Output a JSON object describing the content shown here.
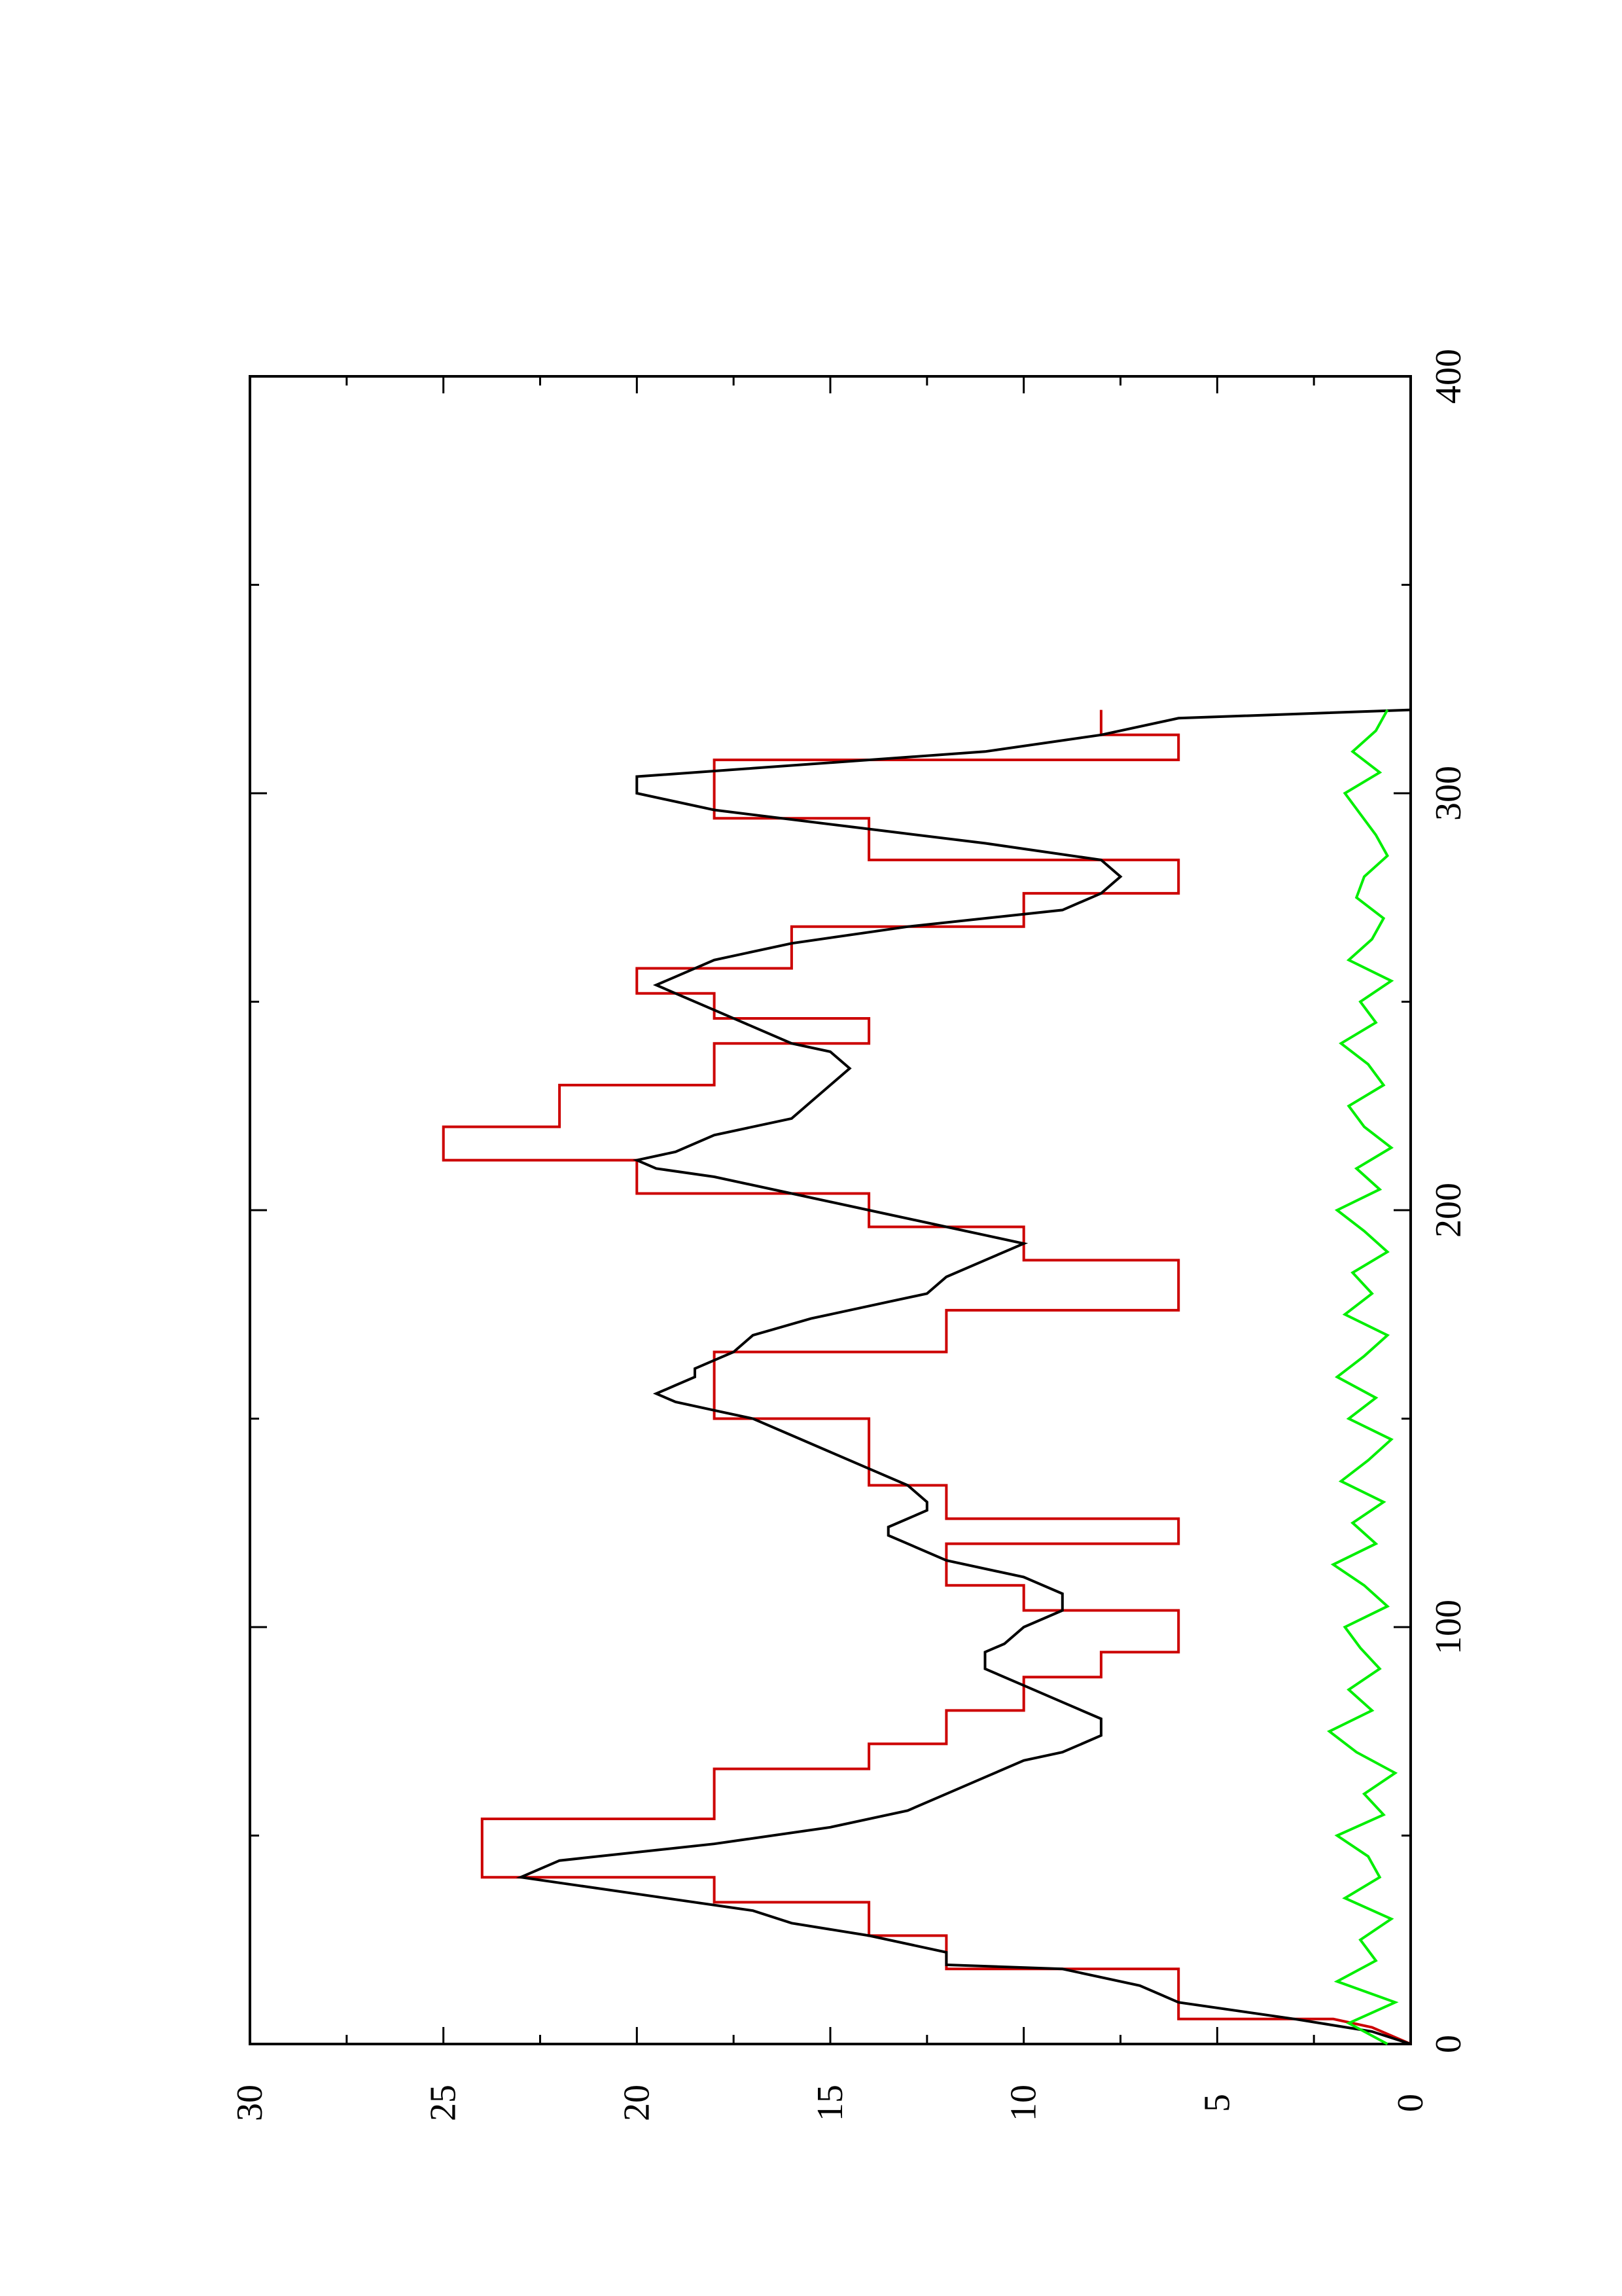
{
  "chart_data": {
    "type": "line",
    "orientation": "rotated-90-ccw",
    "title": "",
    "xlabel": "",
    "ylabel": "",
    "xlim": [
      0,
      400
    ],
    "ylim": [
      0,
      30
    ],
    "x_ticks": [
      "0",
      "100",
      "200",
      "300",
      "400"
    ],
    "y_ticks": [
      "0",
      "5",
      "10",
      "15",
      "20",
      "25",
      "30"
    ],
    "grid": false,
    "legend": "none",
    "series": [
      {
        "color": "#cc0000",
        "x": [
          0,
          4,
          6,
          6,
          18,
          18,
          26,
          26,
          34,
          34,
          40,
          40,
          54,
          54,
          66,
          66,
          72,
          72,
          80,
          80,
          88,
          88,
          94,
          94,
          104,
          104,
          110,
          110,
          120,
          120,
          126,
          126,
          134,
          134,
          150,
          150,
          166,
          166,
          176,
          176,
          188,
          188,
          196,
          196,
          204,
          204,
          212,
          212,
          220,
          220,
          230,
          230,
          240,
          240,
          246,
          246,
          252,
          252,
          258,
          258,
          268,
          268,
          276,
          276,
          284,
          284,
          294,
          294,
          308,
          308,
          314,
          314,
          320
        ],
        "y": [
          0,
          1,
          2,
          6,
          6,
          12,
          12,
          14,
          14,
          18,
          18,
          24,
          24,
          18,
          18,
          14,
          14,
          12,
          12,
          10,
          10,
          8,
          8,
          6,
          6,
          10,
          10,
          12,
          12,
          6,
          6,
          12,
          12,
          14,
          14,
          18,
          18,
          12,
          12,
          6,
          6,
          10,
          10,
          14,
          14,
          20,
          20,
          25,
          25,
          22,
          22,
          18,
          18,
          14,
          14,
          18,
          18,
          20,
          20,
          16,
          16,
          10,
          10,
          6,
          6,
          14,
          14,
          18,
          18,
          6,
          6,
          8,
          8
        ]
      },
      {
        "color": "#000000",
        "x": [
          0,
          3,
          6,
          10,
          14,
          18,
          19,
          22,
          26,
          29,
          32,
          36,
          40,
          44,
          48,
          52,
          56,
          60,
          64,
          68,
          70,
          72,
          74,
          78,
          82,
          86,
          90,
          94,
          96,
          100,
          104,
          108,
          112,
          116,
          120,
          122,
          124,
          126,
          128,
          130,
          134,
          138,
          142,
          146,
          150,
          152,
          154,
          156,
          158,
          160,
          162,
          164,
          166,
          170,
          174,
          178,
          180,
          184,
          188,
          192,
          194,
          196,
          200,
          204,
          208,
          210,
          212,
          214,
          218,
          222,
          226,
          230,
          234,
          238,
          240,
          244,
          248,
          252,
          254,
          256,
          260,
          264,
          268,
          272,
          276,
          280,
          284,
          288,
          292,
          296,
          300,
          304,
          306,
          310,
          314,
          318,
          320
        ],
        "y": [
          0,
          1,
          3,
          6,
          7,
          9,
          12,
          12,
          14,
          16,
          17,
          20,
          23,
          22,
          18,
          15,
          13,
          12,
          11,
          10,
          9,
          8.5,
          8,
          8,
          9,
          10,
          11,
          11,
          10.5,
          10,
          9,
          9,
          10,
          12,
          13,
          13.5,
          13.5,
          13,
          12.5,
          12.5,
          13,
          14,
          15,
          16,
          17,
          18,
          19,
          19.5,
          19,
          18.5,
          18.5,
          18,
          17.5,
          17,
          15.5,
          13.5,
          12.5,
          12,
          11,
          10,
          11,
          12,
          14,
          16,
          18,
          19.5,
          20,
          19,
          18,
          16,
          15.5,
          15,
          14.5,
          15,
          16,
          17,
          18,
          19,
          19.5,
          19,
          18,
          16,
          13,
          9,
          8,
          7.5,
          8,
          11,
          14.5,
          18,
          20,
          20,
          17,
          11,
          8,
          6,
          0
        ]
      },
      {
        "color": "#00ee00",
        "x": [
          0,
          5,
          10,
          15,
          20,
          25,
          30,
          35,
          40,
          45,
          50,
          55,
          60,
          65,
          70,
          75,
          80,
          85,
          90,
          95,
          100,
          105,
          110,
          115,
          120,
          125,
          130,
          135,
          140,
          145,
          150,
          155,
          160,
          165,
          170,
          175,
          180,
          185,
          190,
          195,
          200,
          205,
          210,
          215,
          220,
          225,
          230,
          235,
          240,
          245,
          250,
          255,
          260,
          265,
          270,
          275,
          280,
          285,
          290,
          295,
          300,
          305,
          310,
          315,
          320
        ],
        "y": [
          0.6,
          1.6,
          0.4,
          1.9,
          0.9,
          1.3,
          0.5,
          1.7,
          0.8,
          1.1,
          1.9,
          0.7,
          1.2,
          0.4,
          1.4,
          2.1,
          1.0,
          1.6,
          0.8,
          1.3,
          1.7,
          0.6,
          1.2,
          2.0,
          0.9,
          1.5,
          0.7,
          1.8,
          1.1,
          0.5,
          1.6,
          0.9,
          1.9,
          1.2,
          0.6,
          1.7,
          1.0,
          1.5,
          0.6,
          1.2,
          1.9,
          0.8,
          1.4,
          0.5,
          1.2,
          1.6,
          0.7,
          1.1,
          1.8,
          0.9,
          1.3,
          0.5,
          1.6,
          1.0,
          0.7,
          1.4,
          1.2,
          0.6,
          0.9,
          1.3,
          1.7,
          0.8,
          1.5,
          0.9,
          0.6
        ]
      }
    ]
  }
}
